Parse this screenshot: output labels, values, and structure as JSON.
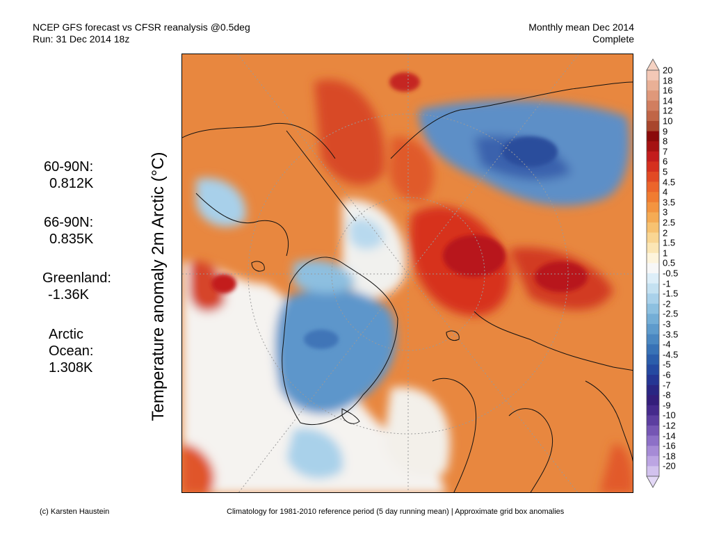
{
  "header": {
    "left_line1": "NCEP GFS forecast vs CFSR reanalysis @0.5deg",
    "left_line2": "Run: 31 Dec 2014 18z",
    "right_line1": "Monthly mean Dec 2014",
    "right_line2": "Complete"
  },
  "map": {
    "title": "Temperature anomaly 2m Arctic (°C)",
    "unit": "°C"
  },
  "stats": [
    {
      "label": "60-90N:",
      "value": "0.812K"
    },
    {
      "label": "66-90N:",
      "value": "0.835K"
    },
    {
      "label": "Greenland:",
      "value": "-1.36K"
    },
    {
      "label": "Arctic\nOcean:",
      "value": "1.308K"
    }
  ],
  "legend": {
    "labels": [
      "20",
      "18",
      "16",
      "14",
      "12",
      "10",
      "9",
      "8",
      "7",
      "6",
      "5",
      "4.5",
      "4",
      "3.5",
      "3",
      "2.5",
      "2",
      "1.5",
      "1",
      "0.5",
      "-0.5",
      "-1",
      "-1.5",
      "-2",
      "-2.5",
      "-3",
      "-3.5",
      "-4",
      "-4.5",
      "-5",
      "-6",
      "-7",
      "-8",
      "-9",
      "-10",
      "-12",
      "-14",
      "-16",
      "-18",
      "-20"
    ],
    "colors": [
      "#f3c8b6",
      "#e9b096",
      "#df987a",
      "#d17e5f",
      "#c06546",
      "#a8452c",
      "#8a0a0a",
      "#a51212",
      "#c31d1d",
      "#d5301f",
      "#e24a24",
      "#ec652b",
      "#f07c31",
      "#f39440",
      "#f5ab54",
      "#f7c271",
      "#f9d693",
      "#fbe6b5",
      "#fdf4dc",
      "#f7f7f7",
      "#ddeef8",
      "#c4e1f1",
      "#a9d1ea",
      "#8dc0e0",
      "#74aed6",
      "#5e9bcc",
      "#4a87c1",
      "#3872b6",
      "#2b5dab",
      "#2549a1",
      "#253694",
      "#2a2683",
      "#341e7b",
      "#452a8c",
      "#5c3ea0",
      "#7556b4",
      "#8d70c7",
      "#a68bd6",
      "#bca5e3",
      "#d2c2ee"
    ],
    "arrow_top_color": "#f5d2c2",
    "arrow_bottom_color": "#e3d8f6"
  },
  "footer": {
    "left": "(c) Karsten Haustein",
    "right": "Climatology for 1981-2010 reference period (5 day running mean) | Approximate grid box anomalies"
  }
}
